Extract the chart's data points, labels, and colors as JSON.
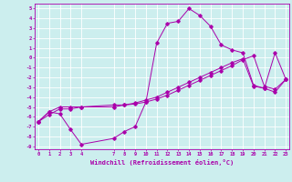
{
  "xlabel": "Windchill (Refroidissement éolien,°C)",
  "bg_color": "#cceeee",
  "grid_color": "#ffffff",
  "line_color": "#aa00aa",
  "xticks": [
    0,
    1,
    2,
    3,
    4,
    7,
    8,
    9,
    10,
    11,
    12,
    13,
    14,
    15,
    16,
    17,
    18,
    19,
    20,
    21,
    22,
    23
  ],
  "yticks": [
    5,
    4,
    3,
    2,
    1,
    0,
    -1,
    -2,
    -3,
    -4,
    -5,
    -6,
    -7,
    -8,
    -9
  ],
  "xlim": [
    -0.3,
    23.3
  ],
  "ylim": [
    -9.3,
    5.5
  ],
  "line1_x": [
    0,
    1,
    2,
    3,
    4,
    7,
    8,
    9,
    10,
    11,
    12,
    13,
    14,
    15,
    16,
    17,
    18,
    19,
    20,
    21,
    22,
    23
  ],
  "line1_y": [
    -6.5,
    -5.5,
    -5.7,
    -7.3,
    -8.8,
    -8.2,
    -7.5,
    -7.0,
    -4.5,
    1.5,
    3.5,
    3.7,
    5.0,
    4.3,
    3.2,
    1.3,
    0.8,
    0.5,
    -2.8,
    -3.1,
    -3.5,
    -2.2
  ],
  "line2_x": [
    0,
    1,
    2,
    3,
    4,
    7,
    8,
    9,
    10,
    11,
    12,
    13,
    14,
    15,
    16,
    17,
    18,
    19,
    20,
    21,
    22,
    23
  ],
  "line2_y": [
    -6.5,
    -5.5,
    -5.0,
    -5.0,
    -5.0,
    -4.8,
    -4.8,
    -4.6,
    -4.3,
    -4.0,
    -3.5,
    -3.0,
    -2.5,
    -2.0,
    -1.5,
    -1.0,
    -0.5,
    -0.1,
    -2.9,
    -3.1,
    0.5,
    -2.2
  ],
  "line3_x": [
    0,
    1,
    2,
    3,
    4,
    7,
    8,
    9,
    10,
    11,
    12,
    13,
    14,
    15,
    16,
    17,
    18,
    19,
    20,
    21,
    22,
    23
  ],
  "line3_y": [
    -6.5,
    -5.8,
    -5.2,
    -5.2,
    -5.0,
    -5.0,
    -4.8,
    -4.7,
    -4.5,
    -4.2,
    -3.8,
    -3.3,
    -2.8,
    -2.3,
    -1.8,
    -1.3,
    -0.8,
    -0.2,
    0.2,
    -2.9,
    -3.2,
    -2.2
  ]
}
